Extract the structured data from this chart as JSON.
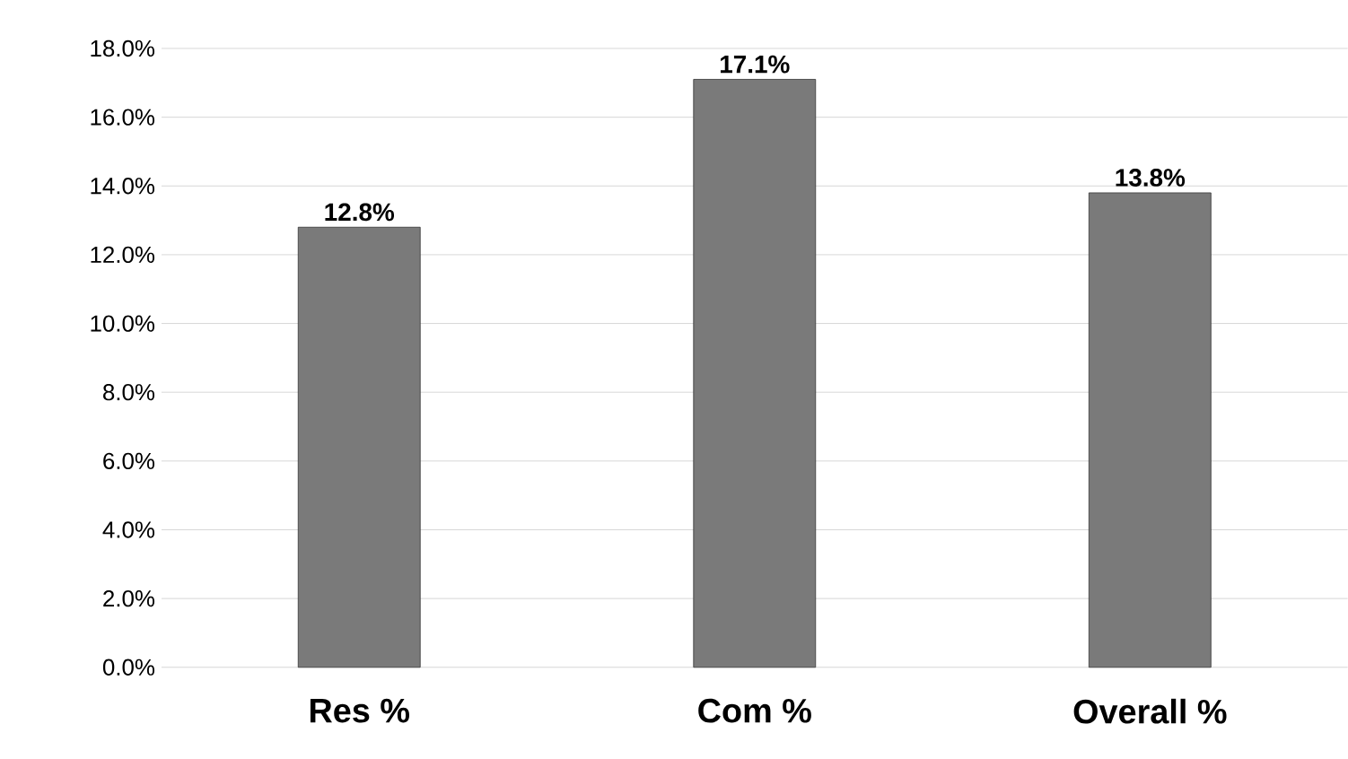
{
  "chart_data": {
    "type": "bar",
    "categories": [
      "Res %",
      "Com %",
      "Overall %"
    ],
    "values": [
      12.8,
      17.1,
      13.8
    ],
    "value_labels": [
      "12.8%",
      "17.1%",
      "13.8%"
    ],
    "color": "#7a7a7a",
    "ylim": [
      0,
      18
    ],
    "yticks": [
      {
        "value": 0,
        "label": "0.0%"
      },
      {
        "value": 2,
        "label": "2.0%"
      },
      {
        "value": 4,
        "label": "4.0%"
      },
      {
        "value": 6,
        "label": "6.0%"
      },
      {
        "value": 8,
        "label": "8.0%"
      },
      {
        "value": 10,
        "label": "10.0%"
      },
      {
        "value": 12,
        "label": "12.0%"
      },
      {
        "value": 14,
        "label": "14.0%"
      },
      {
        "value": 16,
        "label": "16.0%"
      },
      {
        "value": 18,
        "label": "18.0%"
      }
    ],
    "grid": "y"
  }
}
